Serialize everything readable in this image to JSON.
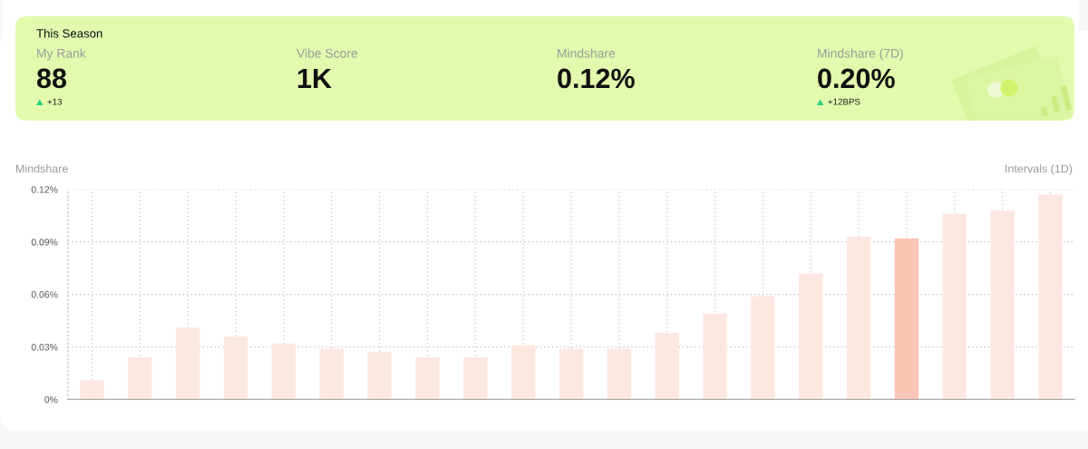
{
  "chart_data": [
    {
      "type": "other",
      "title": "This Season",
      "categories": [
        "My Rank",
        "Vibe Score",
        "Mindshare",
        "Mindshare (7D)"
      ],
      "value_labels": [
        "88",
        "1K",
        "0.12%",
        "0.20%"
      ],
      "annotations": [
        {
          "text": "+13",
          "x": "My Rank"
        },
        {
          "text": "+12BPS",
          "x": "Mindshare (7D)"
        }
      ]
    },
    {
      "type": "bar",
      "title": "Mindshare",
      "annotations": [
        "Intervals (1D)"
      ],
      "categories": [
        null,
        null,
        null,
        null,
        null,
        null,
        null,
        null,
        null,
        null,
        null,
        null,
        null,
        null,
        null,
        null,
        null,
        null,
        null,
        null,
        null
      ],
      "values": [
        0.011,
        0.024,
        0.041,
        0.036,
        0.032,
        0.029,
        0.027,
        0.024,
        0.024,
        0.031,
        0.029,
        0.029,
        0.038,
        0.049,
        0.059,
        0.072,
        0.093,
        0.092,
        0.106,
        0.108,
        0.117
      ],
      "colors": [
        "#fde8e1",
        "#fde8e1",
        "#fde8e1",
        "#fde8e1",
        "#fde8e1",
        "#fde8e1",
        "#fde8e1",
        "#fde8e1",
        "#fde8e1",
        "#fde8e1",
        "#fde8e1",
        "#fde8e1",
        "#fde8e1",
        "#fde8e1",
        "#fde8e1",
        "#fde8e1",
        "#fde8e1",
        "#fdc6b4",
        "#fde8e1",
        "#fde8e1",
        "#fde8e1"
      ],
      "ylim": [
        0,
        0.12
      ],
      "yticks": [
        {
          "value": 0,
          "label": "0%"
        },
        {
          "value": 0.03,
          "label": "0.03%"
        },
        {
          "value": 0.06,
          "label": "0.06%"
        },
        {
          "value": 0.09,
          "label": "0.09%"
        },
        {
          "value": 0.12,
          "label": "0.12%"
        }
      ],
      "grid": true,
      "tick_labels": "y"
    }
  ]
}
